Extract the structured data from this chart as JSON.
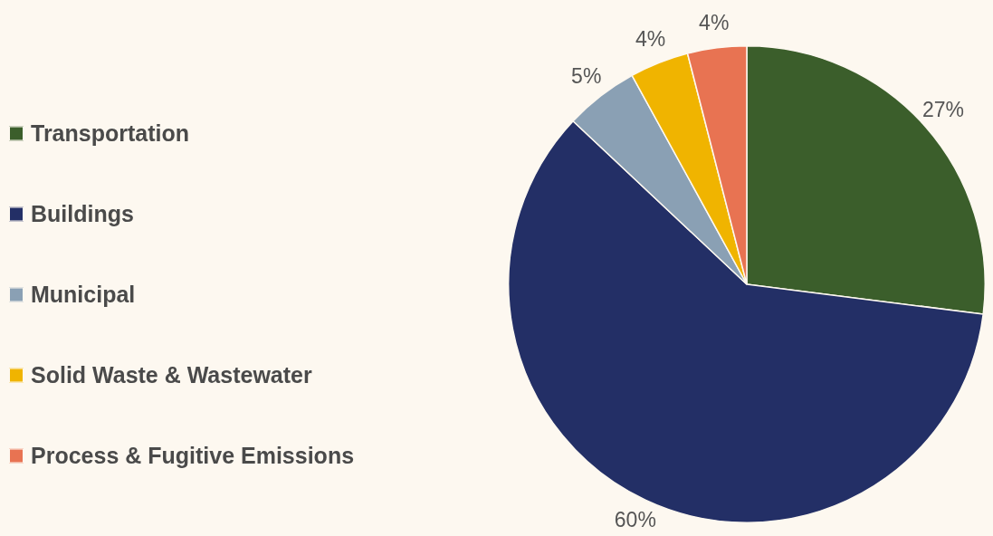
{
  "chart_data": {
    "type": "pie",
    "categories": [
      "Transportation",
      "Buildings",
      "Municipal",
      "Solid Waste & Wastewater",
      "Process & Fugitive Emissions"
    ],
    "values": [
      27,
      60,
      5,
      4,
      4
    ],
    "value_labels": [
      "27%",
      "60%",
      "5%",
      "4%",
      "4%"
    ],
    "colors": [
      "#3b5e2b",
      "#232f66",
      "#8aa0b4",
      "#f0b400",
      "#e87352"
    ],
    "legend": "left"
  }
}
